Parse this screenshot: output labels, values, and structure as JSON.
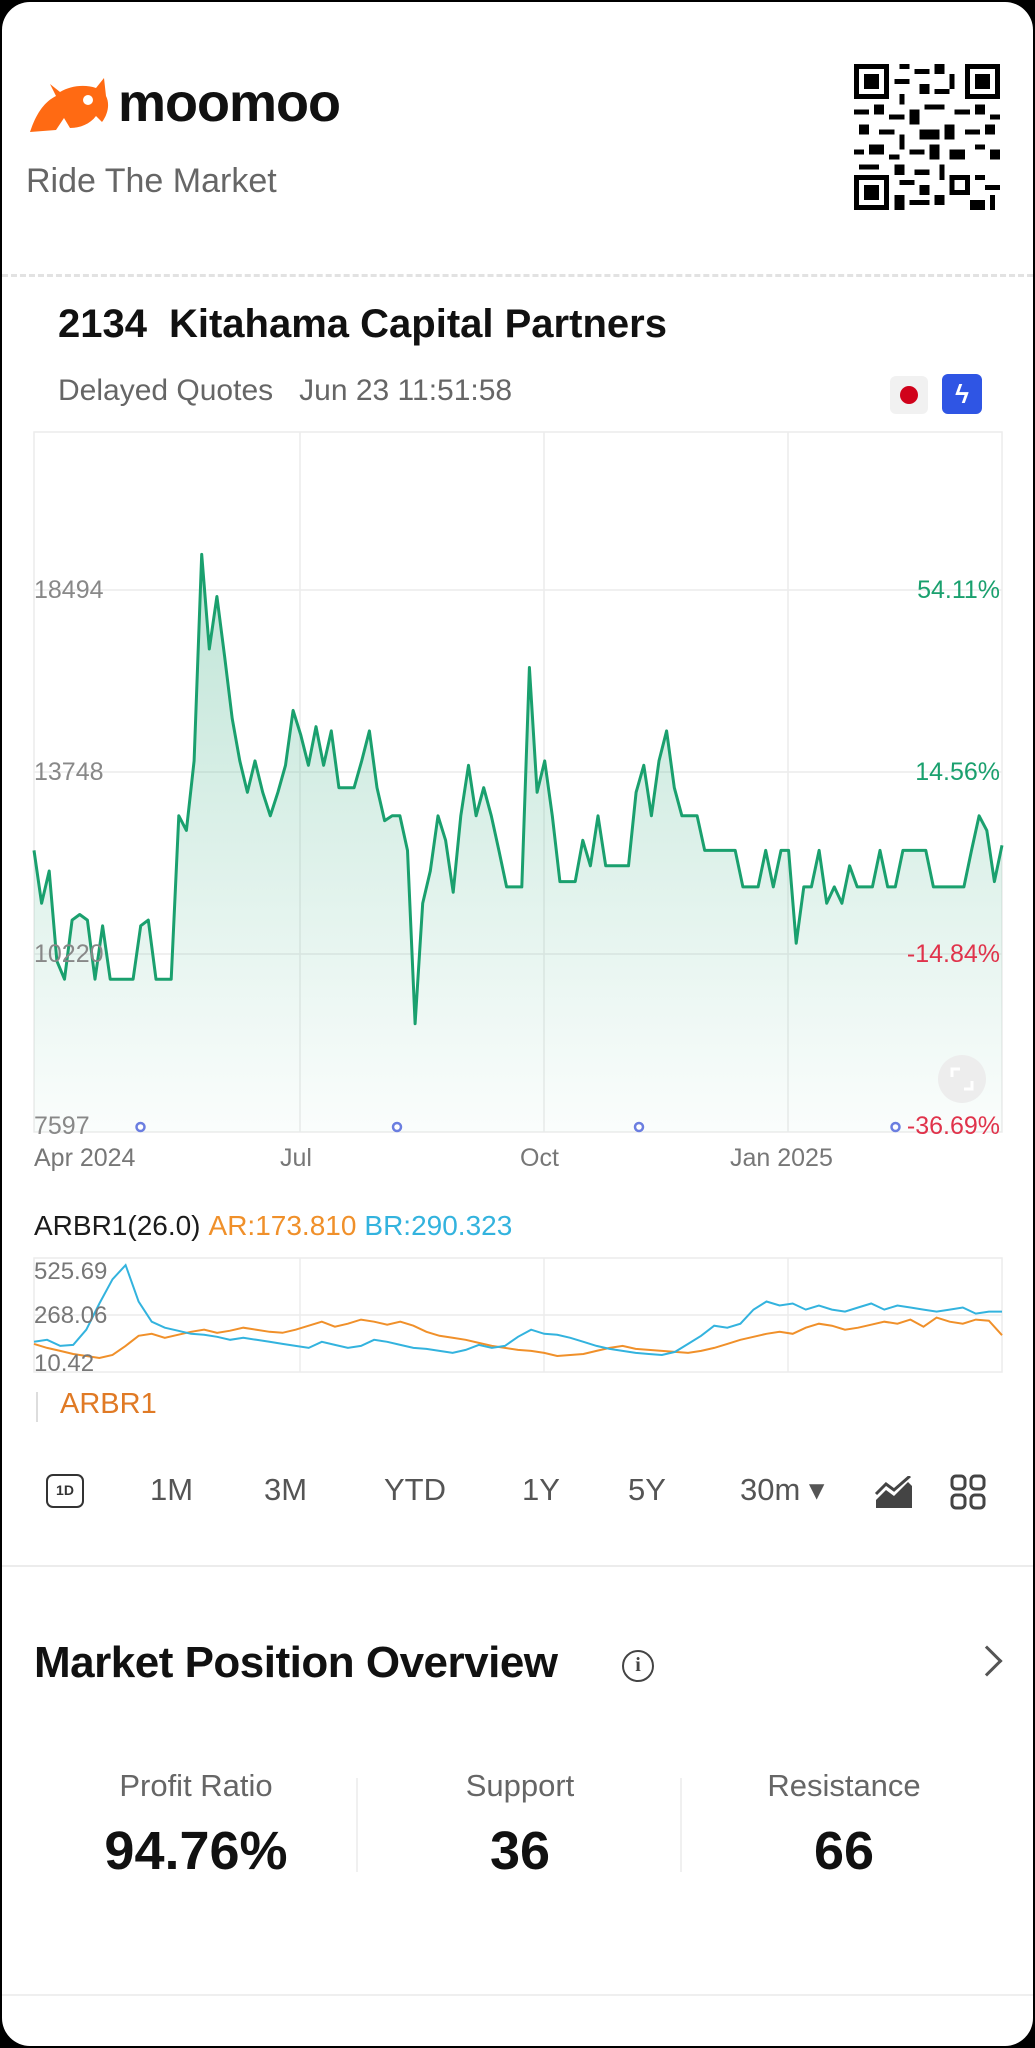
{
  "app": {
    "brand": "moomoo",
    "tagline": "Ride The Market",
    "icons": [
      "bull-logo-icon",
      "qr-code-icon",
      "japan-flag-icon",
      "lightning-icon",
      "expand-icon",
      "line-chart-icon",
      "grid-icon",
      "info-icon",
      "chevron-right-icon"
    ]
  },
  "stock": {
    "code": "2134",
    "name": "Kitahama Capital Partners",
    "quote_label": "Delayed Quotes",
    "timestamp": "Jun 23 11:51:58"
  },
  "chart": {
    "y_labels_left": [
      "18494",
      "13748",
      "10220",
      "7597"
    ],
    "y_labels_right": [
      "54.11%",
      "14.56%",
      "-14.84%",
      "-36.69%"
    ],
    "x_labels": [
      "Apr 2024",
      "Jul",
      "Oct",
      "Jan 2025"
    ],
    "colors": {
      "line": "#1aa06e",
      "up": "#1aa06e",
      "down": "#e0334b"
    }
  },
  "indicator": {
    "name": "ARBR1(26.0)",
    "ar": "AR:173.810",
    "br": "BR:290.323",
    "labels": [
      "525.69",
      "268.06",
      "10.42"
    ],
    "legend": "ARBR1",
    "colors": {
      "ar": "#f0902a",
      "br": "#33b3de"
    }
  },
  "periods": {
    "badge": "1D",
    "items": [
      "1M",
      "3M",
      "YTD",
      "1Y",
      "5Y"
    ],
    "interval": "30m ▾"
  },
  "position": {
    "title": "Market Position Overview",
    "stats": [
      {
        "label": "Profit Ratio",
        "value": "94.76%"
      },
      {
        "label": "Support",
        "value": "36"
      },
      {
        "label": "Resistance",
        "value": "66"
      }
    ]
  },
  "chart_data": [
    {
      "type": "line",
      "title": "",
      "xlabel": "",
      "ylabel": "",
      "x_ticks": [
        "Apr 2024",
        "Jul",
        "Oct",
        "Jan 2025"
      ],
      "y_ticks": [
        18494,
        13748,
        10220,
        7597
      ],
      "y_ticks_pct": [
        "54.11%",
        "14.56%",
        "-14.84%",
        "-36.69%"
      ],
      "ylim": [
        7597,
        20500
      ],
      "grid": true,
      "series": [
        {
          "values": [
            12100,
            11100,
            11700,
            10100,
            9800,
            10800,
            10900,
            10800,
            9800,
            10700,
            9800,
            9800,
            9800,
            9800,
            10700,
            10800,
            9800,
            9800,
            9800,
            12800,
            12500,
            14000,
            19600,
            16800,
            18300,
            16600,
            15000,
            14000,
            13300,
            14000,
            13300,
            12800,
            13300,
            13900,
            15200,
            14600,
            13900,
            14800,
            13900,
            14700,
            13400,
            13400,
            13400,
            14000,
            14700,
            13400,
            12700,
            12800,
            12800,
            12100,
            9100,
            11100,
            11700,
            12800,
            12300,
            11300,
            12800,
            13900,
            12800,
            13400,
            12800,
            12100,
            11400,
            11400,
            11400,
            16300,
            13300,
            14000,
            12800,
            11500,
            11500,
            11500,
            12300,
            11800,
            12800,
            11800,
            11800,
            11800,
            11800,
            13300,
            13900,
            12800,
            14000,
            14700,
            13400,
            12800,
            12800,
            12800,
            12100,
            12100,
            12100,
            12100,
            12100,
            11400,
            11400,
            11400,
            12100,
            11400,
            12100,
            12100,
            10400,
            11400,
            11400,
            12100,
            11100,
            11400,
            11100,
            11800,
            11400,
            11400,
            11400,
            12100,
            11400,
            11400,
            12100,
            12100,
            12100,
            12100,
            11400,
            11400,
            11400,
            11400,
            11400,
            12100,
            12800,
            12500,
            11500,
            12200
          ]
        }
      ]
    },
    {
      "type": "line",
      "title": "ARBR1(26.0)",
      "y_ticks": [
        525.69,
        268.06,
        10.42
      ],
      "ylim": [
        10.42,
        525.69
      ],
      "series": [
        {
          "name": "AR",
          "values": [
            130,
            110,
            95,
            80,
            70,
            60,
            75,
            120,
            170,
            180,
            160,
            175,
            190,
            200,
            185,
            195,
            210,
            200,
            190,
            185,
            200,
            220,
            240,
            215,
            230,
            250,
            240,
            225,
            240,
            220,
            190,
            170,
            160,
            150,
            135,
            120,
            110,
            100,
            95,
            85,
            70,
            75,
            80,
            95,
            110,
            120,
            105,
            100,
            95,
            90,
            85,
            95,
            110,
            130,
            150,
            165,
            180,
            190,
            180,
            210,
            230,
            220,
            200,
            210,
            225,
            240,
            230,
            250,
            215,
            260,
            240,
            230,
            250,
            245,
            173
          ]
        },
        {
          "name": "BR",
          "values": [
            140,
            150,
            120,
            125,
            200,
            330,
            450,
            520,
            340,
            240,
            210,
            195,
            180,
            175,
            165,
            150,
            160,
            150,
            140,
            130,
            120,
            110,
            140,
            125,
            110,
            120,
            150,
            140,
            125,
            110,
            105,
            95,
            85,
            100,
            125,
            110,
            120,
            165,
            200,
            180,
            175,
            160,
            140,
            120,
            105,
            95,
            85,
            80,
            75,
            90,
            130,
            170,
            220,
            210,
            230,
            300,
            340,
            320,
            330,
            300,
            320,
            300,
            290,
            310,
            330,
            300,
            320,
            310,
            300,
            290,
            300,
            310,
            280,
            290,
            290
          ]
        }
      ]
    }
  ]
}
